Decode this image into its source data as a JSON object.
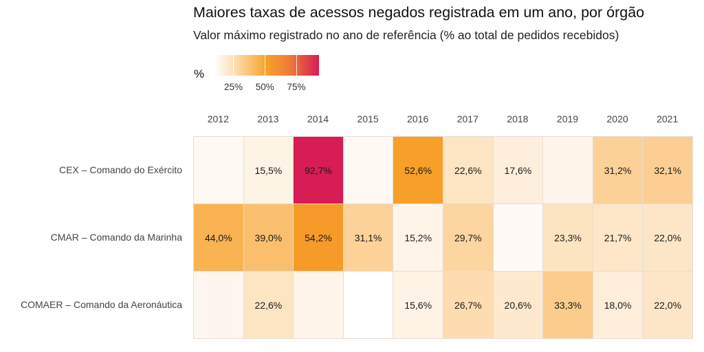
{
  "chart_data": {
    "type": "heatmap",
    "title": "Maiores taxas de acessos negados registrada em um ano, por órgão",
    "subtitle": "Valor máximo registrado no ano de referência (% ao total de pedidos recebidos)",
    "xlabel": "",
    "ylabel": "",
    "x": [
      "2012",
      "2013",
      "2014",
      "2015",
      "2016",
      "2017",
      "2018",
      "2019",
      "2020",
      "2021"
    ],
    "y": [
      "CEX – Comando do Exército",
      "CMAR – Comando da Marinha",
      "COMAER – Comando da Aeronáutica"
    ],
    "values": [
      [
        null,
        15.5,
        92.7,
        null,
        52.6,
        22.6,
        17.6,
        null,
        31.2,
        32.1
      ],
      [
        44.0,
        39.0,
        54.2,
        31.1,
        15.2,
        29.7,
        null,
        23.3,
        21.7,
        22.0
      ],
      [
        null,
        22.6,
        null,
        null,
        15.6,
        26.7,
        20.6,
        33.3,
        18.0,
        22.0
      ]
    ],
    "labels": [
      [
        "",
        "15,5%",
        "92,7%",
        "",
        "52,6%",
        "22,6%",
        "17,6%",
        "",
        "31,2%",
        "32,1%"
      ],
      [
        "44,0%",
        "39,0%",
        "54,2%",
        "31,1%",
        "15,2%",
        "29,7%",
        "",
        "23,3%",
        "21,7%",
        "22,0%"
      ],
      [
        "",
        "22,6%",
        "",
        "",
        "15,6%",
        "26,7%",
        "20,6%",
        "33,3%",
        "18,0%",
        "22,0%"
      ]
    ],
    "unlabeled_cell_fills": [
      [
        "#fff9f3",
        null,
        null,
        "#fff9f3",
        null,
        null,
        null,
        "#fff5ea",
        null,
        null
      ],
      [
        null,
        null,
        null,
        null,
        null,
        null,
        "#fffaf5",
        null,
        null,
        null
      ],
      [
        "#fff7ef",
        null,
        "#fff5ea",
        "#ffffff",
        null,
        null,
        null,
        null,
        null,
        null
      ]
    ],
    "legend": {
      "title": "%",
      "placement": "top-left",
      "ticks": [
        25,
        50,
        75
      ],
      "tick_labels": [
        "25%",
        "50%",
        "75%"
      ],
      "range": [
        10,
        93
      ],
      "colors": [
        "#ffffff",
        "#fde0b9",
        "#f7a028",
        "#ef7a3a",
        "#d81b55"
      ]
    },
    "grid": false
  }
}
